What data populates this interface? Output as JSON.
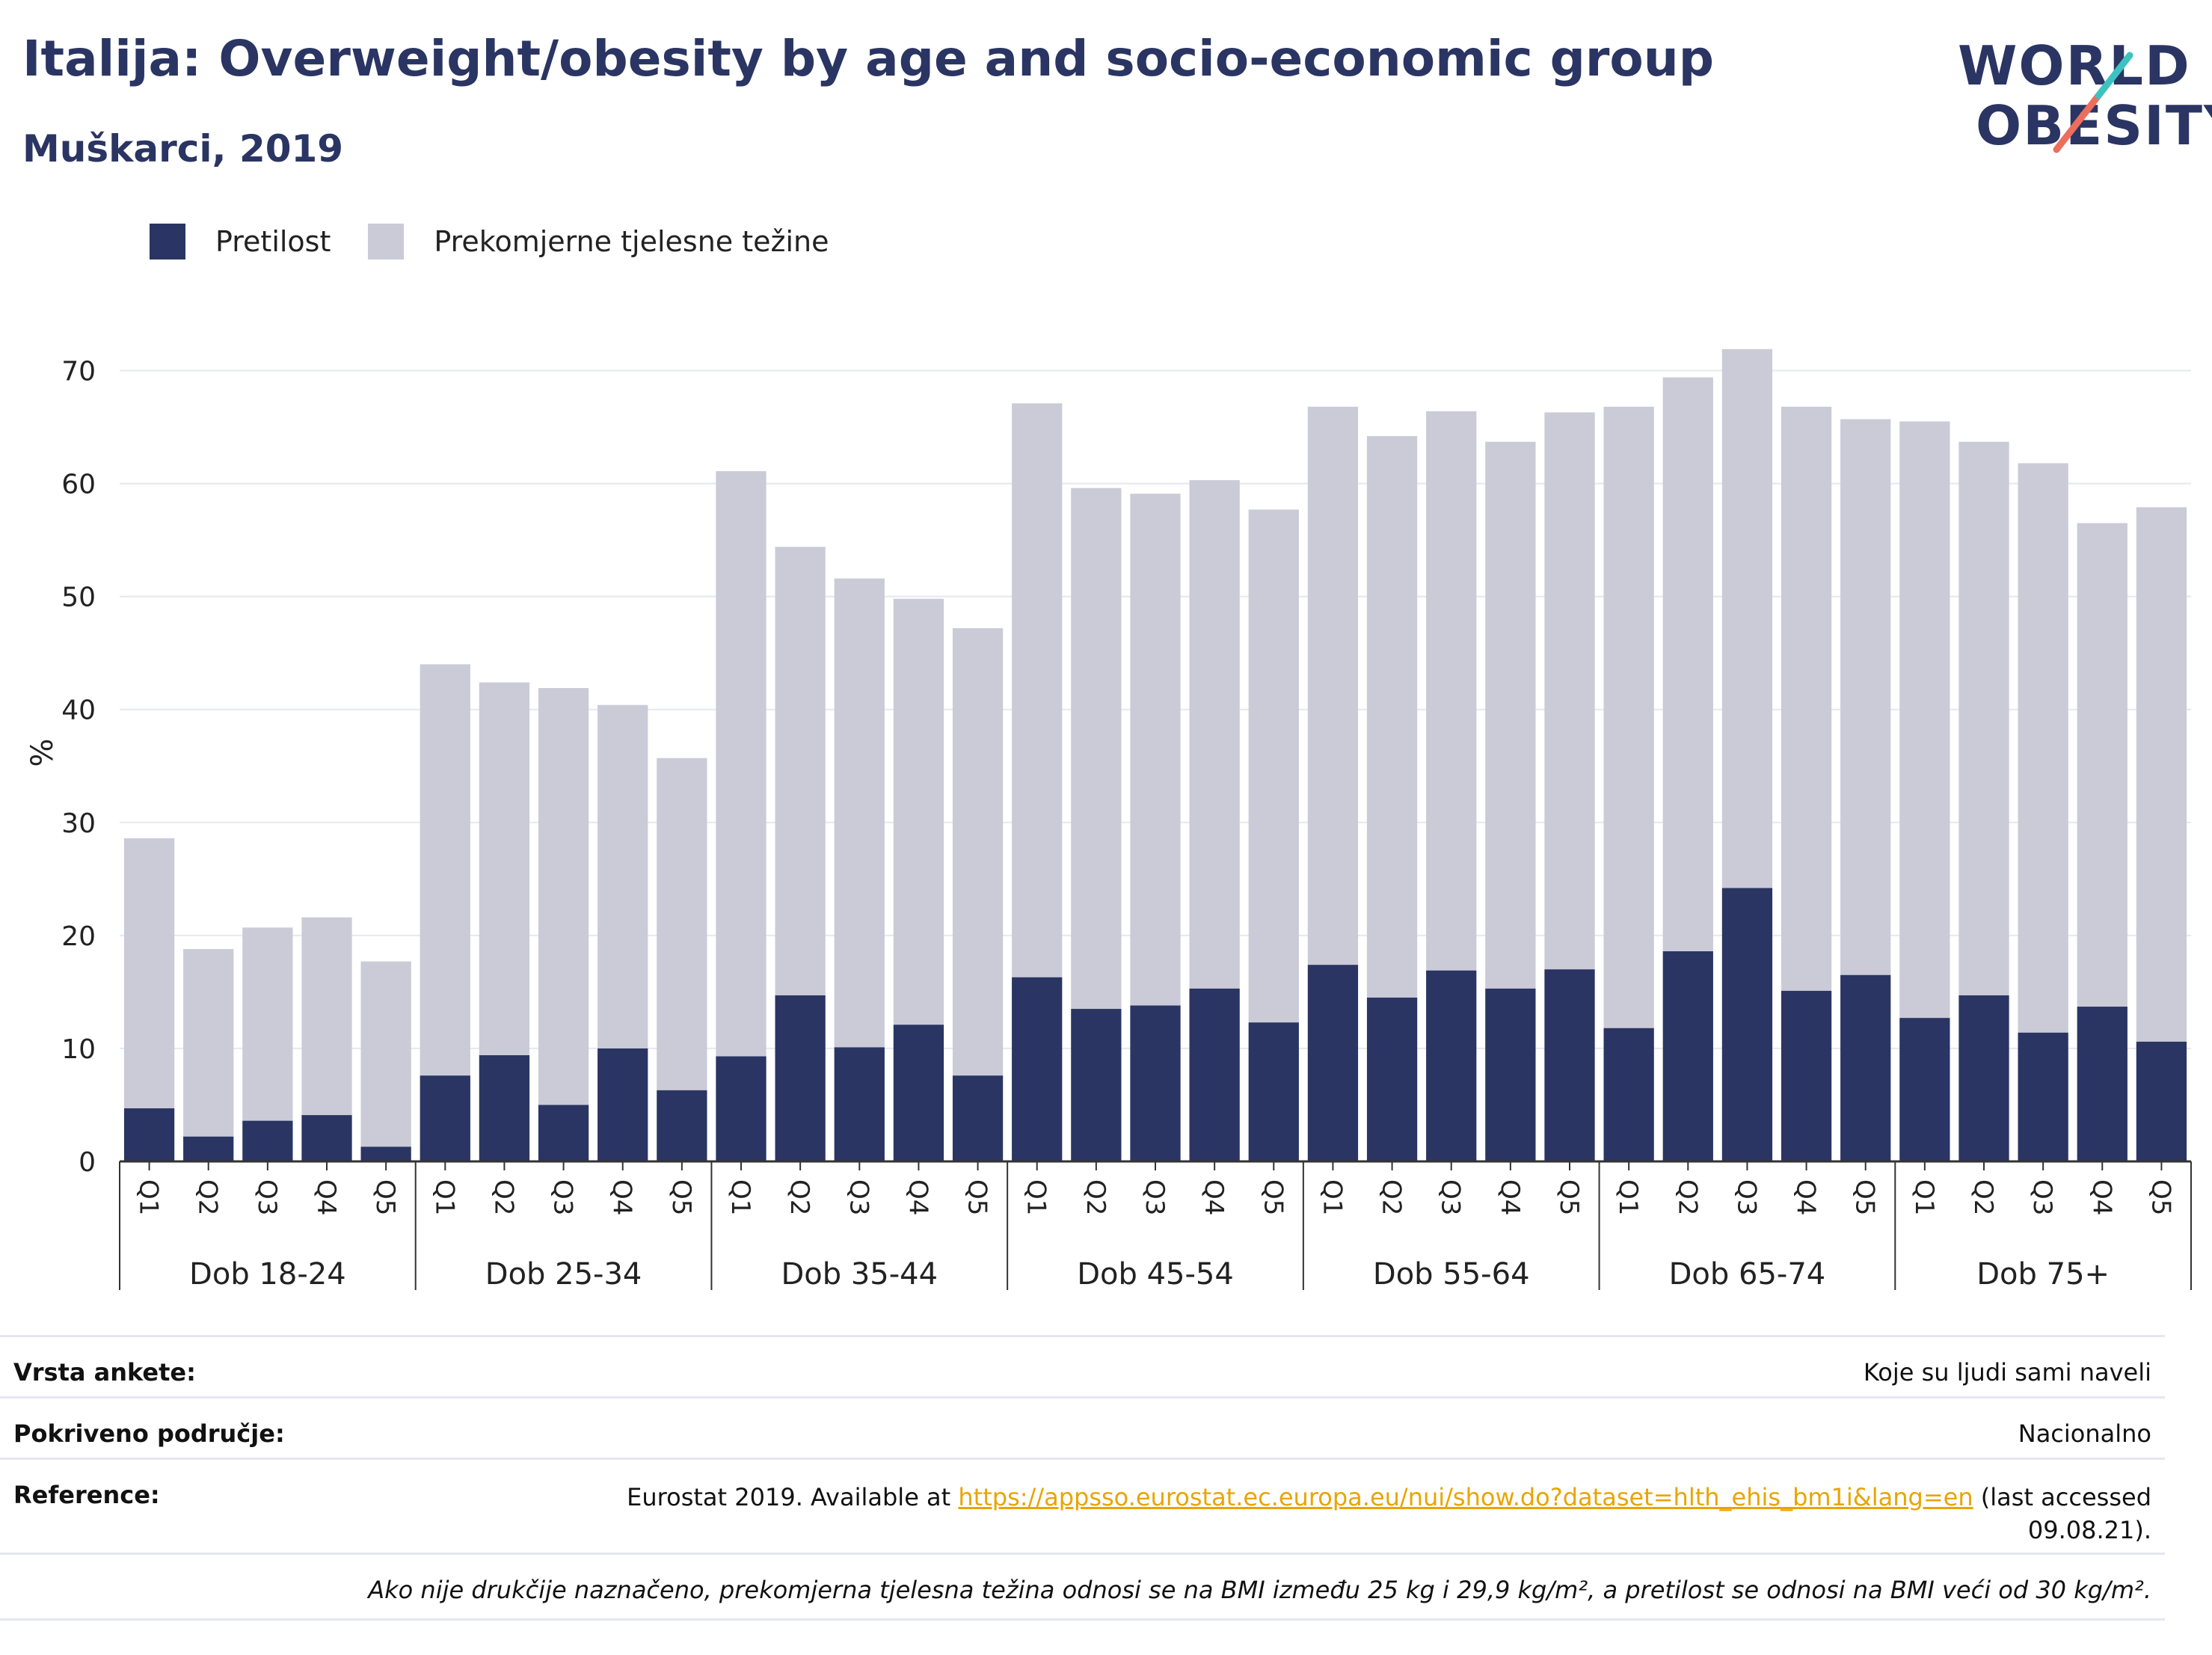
{
  "header": {
    "title": "Italija: Overweight/obesity by age and socio-economic group",
    "subtitle": "Muškarci, 2019",
    "logo_line1": "WORLD",
    "logo_line2": "OBESITY"
  },
  "legend": {
    "obesity_label": "Pretilost",
    "overweight_label": "Prekomjerne tjelesne težine"
  },
  "colors": {
    "obesity": "#2a3563",
    "overweight": "#cacbd7",
    "title": "#2a3563",
    "logo_teal": "#3cc3c0",
    "logo_coral": "#ec6e5c",
    "link": "#e8a500"
  },
  "chart_data": {
    "type": "bar",
    "stacked": true,
    "ylabel": "%",
    "ylim": [
      0,
      75
    ],
    "yticks": [
      0,
      10,
      20,
      30,
      40,
      50,
      60,
      70
    ],
    "grid": true,
    "legend_position": "top-left",
    "groups": [
      "Dob 18-24",
      "Dob 25-34",
      "Dob 35-44",
      "Dob 45-54",
      "Dob 55-64",
      "Dob 65-74",
      "Dob 75+"
    ],
    "categories": [
      "Q1",
      "Q2",
      "Q3",
      "Q4",
      "Q5"
    ],
    "series": [
      {
        "name": "Pretilost",
        "values": [
          [
            4.7,
            2.2,
            3.6,
            4.1,
            1.3
          ],
          [
            7.6,
            9.4,
            5.0,
            10.0,
            6.3
          ],
          [
            9.3,
            14.7,
            10.1,
            12.1,
            7.6
          ],
          [
            16.3,
            13.5,
            13.8,
            15.3,
            12.3
          ],
          [
            17.4,
            14.5,
            16.9,
            15.3,
            17.0
          ],
          [
            11.8,
            18.6,
            24.2,
            15.1,
            16.5
          ],
          [
            12.7,
            14.7,
            11.4,
            13.7,
            10.6
          ]
        ]
      },
      {
        "name": "Prekomjerne tjelesne težine",
        "totals": [
          [
            28.6,
            18.8,
            20.7,
            21.6,
            17.7
          ],
          [
            44.0,
            42.4,
            41.9,
            40.4,
            35.7
          ],
          [
            61.1,
            54.4,
            51.6,
            49.8,
            47.2
          ],
          [
            67.1,
            59.6,
            59.1,
            60.3,
            57.7
          ],
          [
            66.8,
            64.2,
            66.4,
            63.7,
            66.3
          ],
          [
            66.8,
            69.4,
            71.9,
            66.8,
            65.7
          ],
          [
            65.5,
            63.7,
            61.8,
            56.5,
            57.9
          ]
        ]
      }
    ]
  },
  "info": {
    "survey_type_label": "Vrsta ankete:",
    "survey_type_value": "Koje su ljudi sami naveli",
    "area_label": "Pokriveno područje:",
    "area_value": "Nacionalno",
    "reference_label": "Reference:",
    "reference_prefix": "Eurostat 2019. Available at ",
    "reference_link": "https://appsso.eurostat.ec.europa.eu/nui/show.do?dataset=hlth_ehis_bm1i&lang=en",
    "reference_suffix": " (last accessed",
    "reference_date": "09.08.21).",
    "footnote": "Ako nije drukčije naznačeno, prekomjerna tjelesna težina odnosi se na BMI između 25 kg i 29,9 kg/m², a pretilost se odnosi na BMI veći od 30 kg/m²."
  }
}
